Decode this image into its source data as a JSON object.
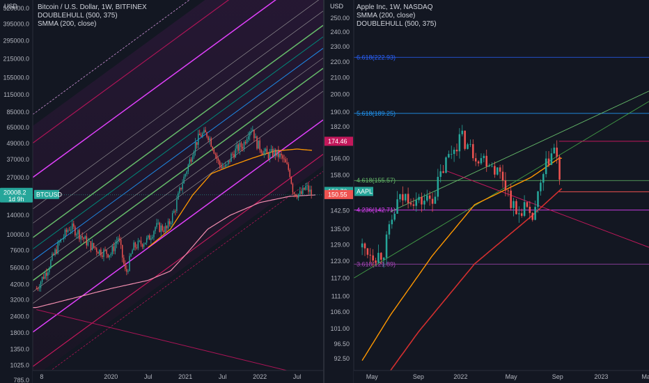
{
  "left_chart": {
    "currency": "USD",
    "legend": [
      "Bitcoin / U.S. Dollar, 1W, BITFINEX",
      "DOUBLEHULL (500, 375)",
      "SMMA (200, close)"
    ],
    "price_tag": {
      "value": "20008.2",
      "countdown": "1d 9h",
      "symbol": "BTCUSD"
    },
    "colors": {
      "up": "#26a69a",
      "down": "#ef5350",
      "magenta": "#e040fb",
      "pink": "#f06292",
      "green": "#66bb6a",
      "orange": "#ff9800",
      "tag": "#26a69a"
    }
  },
  "right_chart": {
    "currency": "USD",
    "legend": [
      "Apple Inc, 1W, NASDAQ",
      "SMMA (200, close)",
      "DOUBLEHULL (500, 375)"
    ],
    "price_tags": [
      {
        "value": "174.46",
        "color": "#c2185b"
      },
      {
        "value": "150.70",
        "symbol": "AAPL",
        "color": "#26a69a"
      },
      {
        "value": "150.55",
        "color": "#ef5350"
      }
    ],
    "fib_levels": [
      {
        "label": "6.618(222.93)",
        "value": 222.93,
        "color": "#2962ff"
      },
      {
        "label": "5.618(189.25)",
        "value": 189.25,
        "color": "#2196f3"
      },
      {
        "label": "4.618(155.57)",
        "value": 155.57,
        "color": "#66bb6a"
      },
      {
        "label": "4.236(142.71)",
        "value": 142.71,
        "color": "#e040fb"
      },
      {
        "label": "3.618(121.89)",
        "value": 121.89,
        "color": "#ab47bc"
      }
    ]
  },
  "chart_data": [
    {
      "type": "candlestick",
      "title": "Bitcoin / U.S. Dollar, 1W, BITFINEX",
      "ylabel": "USD",
      "yscale": "log",
      "y_ticks": [
        520000.0,
        395000.0,
        295000.0,
        215000.0,
        155000.0,
        115000.0,
        85000.0,
        65000.0,
        49000.0,
        37000.0,
        27000.0,
        20008.2,
        14000.0,
        10000.0,
        7600.0,
        5600.0,
        4200.0,
        3200.0,
        2400.0,
        1800.0,
        1350.0,
        1025.0,
        785.0
      ],
      "y_tick_labels": [
        "520000.0",
        "395000.0",
        "295000.0",
        "215000.0",
        "155000.0",
        "115000.0",
        "85000.0",
        "65000.0",
        "49000.0",
        "37000.0",
        "27000.0",
        "20008.2",
        "14000.0",
        "10000.0",
        "7600.0",
        "5600.0",
        "4200.0",
        "3200.0",
        "2400.0",
        "1800.0",
        "1350.0",
        "1025.0",
        "785.0"
      ],
      "x_tick_labels": [
        "8",
        "2020",
        "Jul",
        "2021",
        "Jul",
        "2022",
        "Jul"
      ],
      "ylim": [
        750,
        600000
      ],
      "close_path": [
        [
          2019.0,
          3900
        ],
        [
          2019.15,
          5500
        ],
        [
          2019.3,
          8500
        ],
        [
          2019.45,
          11500
        ],
        [
          2019.55,
          10500
        ],
        [
          2019.7,
          8500
        ],
        [
          2019.85,
          7500
        ],
        [
          2020.0,
          7200
        ],
        [
          2020.1,
          9600
        ],
        [
          2020.2,
          5000
        ],
        [
          2020.3,
          8000
        ],
        [
          2020.5,
          9200
        ],
        [
          2020.6,
          11500
        ],
        [
          2020.75,
          11000
        ],
        [
          2020.85,
          15000
        ],
        [
          2020.95,
          24000
        ],
        [
          2021.05,
          35000
        ],
        [
          2021.12,
          47000
        ],
        [
          2021.2,
          57000
        ],
        [
          2021.3,
          58000
        ],
        [
          2021.38,
          45000
        ],
        [
          2021.45,
          34000
        ],
        [
          2021.55,
          32000
        ],
        [
          2021.62,
          40000
        ],
        [
          2021.7,
          45000
        ],
        [
          2021.78,
          48000
        ],
        [
          2021.85,
          62000
        ],
        [
          2021.9,
          65000
        ],
        [
          2021.95,
          50000
        ],
        [
          2022.0,
          46000
        ],
        [
          2022.1,
          40000
        ],
        [
          2022.2,
          42000
        ],
        [
          2022.3,
          38000
        ],
        [
          2022.4,
          30000
        ],
        [
          2022.45,
          21000
        ],
        [
          2022.55,
          20000
        ],
        [
          2022.62,
          23000
        ],
        [
          2022.7,
          20008.2
        ]
      ],
      "smma_200": [
        [
          2019.0,
          2800
        ],
        [
          2019.5,
          3300
        ],
        [
          2020.0,
          3900
        ],
        [
          2020.5,
          4500
        ],
        [
          2020.8,
          5300
        ],
        [
          2021.0,
          7000
        ],
        [
          2021.3,
          11000
        ],
        [
          2021.6,
          14000
        ],
        [
          2022.0,
          17500
        ],
        [
          2022.4,
          19500
        ],
        [
          2022.75,
          20000
        ]
      ]
    },
    {
      "type": "candlestick",
      "title": "Apple Inc, 1W, NASDAQ",
      "ylabel": "USD",
      "yscale": "log",
      "y_ticks": [
        250.0,
        240.0,
        230.0,
        220.0,
        210.0,
        200.0,
        190.0,
        182.0,
        174.46,
        166.0,
        158.0,
        150.7,
        142.5,
        135.0,
        129.0,
        123.0,
        117.0,
        111.0,
        106.0,
        101.0,
        96.5,
        92.5
      ],
      "y_tick_labels": [
        "250.00",
        "240.00",
        "230.00",
        "220.00",
        "210.00",
        "200.00",
        "190.00",
        "182.00",
        "174.46",
        "166.00",
        "158.00",
        "150.70",
        "142.50",
        "135.00",
        "129.00",
        "123.00",
        "117.00",
        "111.00",
        "106.00",
        "101.00",
        "96.50",
        "92.50"
      ],
      "x_tick_labels": [
        "May",
        "Sep",
        "2022",
        "May",
        "Sep",
        "2023",
        "May"
      ],
      "ylim": [
        89,
        253
      ],
      "close_path": [
        [
          2021.3,
          128
        ],
        [
          2021.4,
          125
        ],
        [
          2021.45,
          126
        ],
        [
          2021.55,
          146
        ],
        [
          2021.62,
          149
        ],
        [
          2021.7,
          146
        ],
        [
          2021.8,
          148
        ],
        [
          2021.9,
          165
        ],
        [
          2022.0,
          177
        ],
        [
          2022.1,
          168
        ],
        [
          2022.2,
          165
        ],
        [
          2022.3,
          157
        ],
        [
          2022.4,
          140
        ],
        [
          2022.45,
          145
        ],
        [
          2022.5,
          137
        ],
        [
          2022.55,
          148
        ],
        [
          2022.62,
          165
        ],
        [
          2022.67,
          171
        ],
        [
          2022.72,
          150.7
        ]
      ],
      "smma_200": [
        [
          2021.3,
          92
        ],
        [
          2021.5,
          105
        ],
        [
          2021.8,
          125
        ],
        [
          2022.1,
          145
        ],
        [
          2022.5,
          157
        ],
        [
          2022.7,
          166
        ]
      ]
    }
  ]
}
